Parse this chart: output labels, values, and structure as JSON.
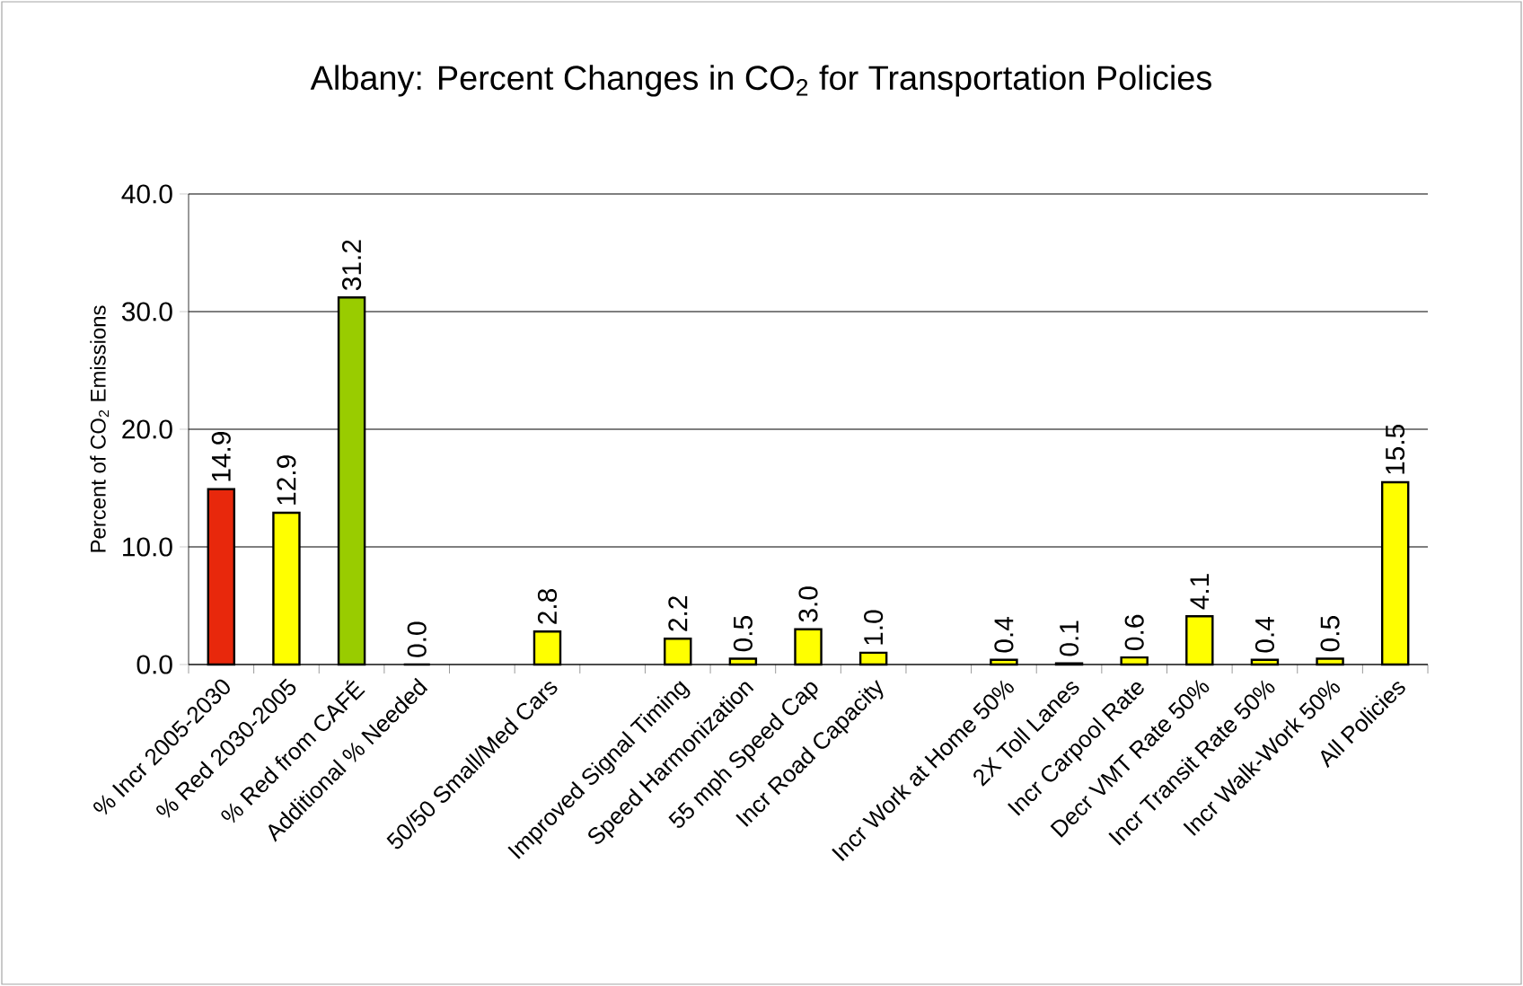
{
  "chart_data": {
    "type": "bar",
    "title": "Albany: Percent Changes in CO$_{2}$ for Transportation Policies",
    "ylabel": "Percent of CO$_{2}$ Emissions",
    "categories": [
      "% Incr 2005-2030",
      "% Red 2030-2005",
      "% Red from CAFÉ",
      "Additional % Needed",
      null,
      "50/50  Small/Med Cars",
      null,
      "Improved Signal Timing",
      "Speed Harmonization",
      "55 mph Speed Cap",
      "Incr Road Capacity",
      null,
      "Incr Work at Home 50%",
      "2X Toll Lanes",
      "Incr Carpool Rate",
      "Decr VMT Rate 50%",
      "Incr Transit Rate 50%",
      "Incr Walk-Work 50%",
      "All Policies"
    ],
    "values": [
      14.9,
      12.9,
      31.2,
      0.0,
      null,
      2.8,
      null,
      2.2,
      0.5,
      3.0,
      1.0,
      null,
      0.4,
      0.1,
      0.6,
      4.1,
      0.4,
      0.5,
      15.5
    ],
    "value_labels": [
      "14.9",
      "12.9",
      "31.2",
      "0.0",
      null,
      "2.8",
      null,
      "2.2",
      "0.5",
      "3.0",
      "1.0",
      null,
      "0.4",
      "0.1",
      "0.6",
      "4.1",
      "0.4",
      "0.5",
      "15.5"
    ],
    "colors": [
      "#e8280c",
      "#ffff00",
      "#99cc00",
      "#ffff00",
      null,
      "#ffff00",
      null,
      "#ffff00",
      "#ffff00",
      "#ffff00",
      "#ffff00",
      null,
      "#ffff00",
      "#ffff00",
      "#ffff00",
      "#ffff00",
      "#ffff00",
      "#ffff00",
      "#ffff00"
    ],
    "ylim": [
      0,
      40
    ],
    "yticks": [
      {
        "value": 0,
        "label": "0.0"
      },
      {
        "value": 10,
        "label": "10.0"
      },
      {
        "value": 20,
        "label": "20.0"
      },
      {
        "value": 30,
        "label": "30.0"
      },
      {
        "value": 40,
        "label": "40.0"
      }
    ],
    "grid": "y"
  }
}
